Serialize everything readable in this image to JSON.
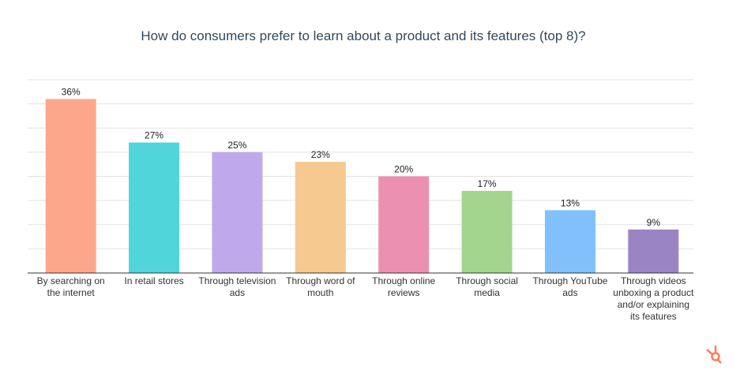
{
  "chart_data": {
    "type": "bar",
    "title": "How do consumers prefer to learn about a product and its features (top 8)?",
    "categories": [
      "By searching on the internet",
      "In retail stores",
      "Through television ads",
      "Through word of mouth",
      "Through online reviews",
      "Through social media",
      "Through YouTube ads",
      "Through videos unboxing a product and/or explaining its features"
    ],
    "values": [
      36,
      27,
      25,
      23,
      20,
      17,
      13,
      9
    ],
    "value_labels": [
      "36%",
      "27%",
      "25%",
      "23%",
      "20%",
      "17%",
      "13%",
      "9%"
    ],
    "colors": [
      "#fca78c",
      "#4fd5da",
      "#bfa9ec",
      "#f5c98f",
      "#ec90b1",
      "#a4d58f",
      "#81c0fb",
      "#9b84c4"
    ],
    "ylim": [
      0,
      40
    ],
    "yticks": [
      0,
      5,
      10,
      15,
      20,
      25,
      30,
      35,
      40
    ],
    "grid": true
  }
}
